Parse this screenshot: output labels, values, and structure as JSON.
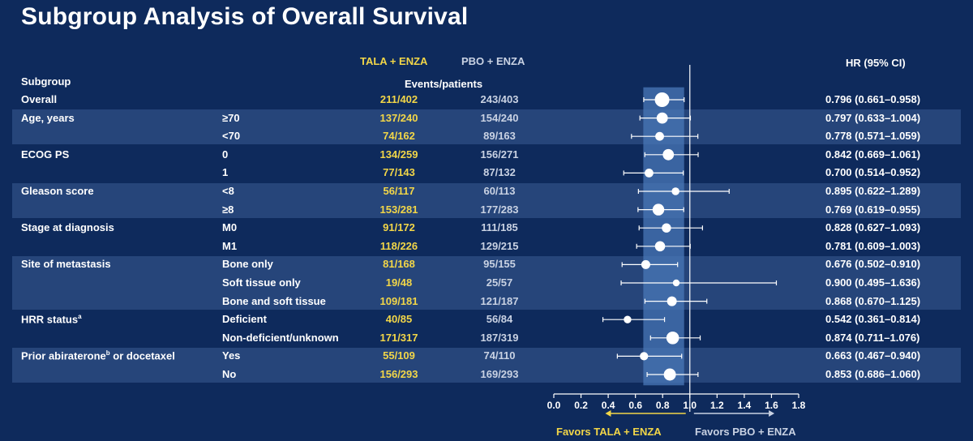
{
  "title": "Subgroup Analysis of Overall Survival",
  "headers": {
    "arm1": "TALA + ENZA",
    "arm2": "PBO + ENZA",
    "subgroup": "Subgroup",
    "events": "Events/patients",
    "hr": "HR (95% CI)"
  },
  "favors": {
    "left": "Favors TALA + ENZA",
    "right": "Favors PBO + ENZA"
  },
  "colors": {
    "background": "#0e2a5c",
    "band": "#2a4a7f",
    "highlight": "#4a78b8",
    "accent_yellow": "#f2d648",
    "marker": "#ffffff"
  },
  "chart_data": {
    "type": "forest",
    "xlim": [
      0.0,
      1.8
    ],
    "xticks": [
      "0.0",
      "0.2",
      "0.4",
      "0.6",
      "0.8",
      "1.0",
      "1.2",
      "1.4",
      "1.6",
      "1.8"
    ],
    "reference_line": 1.0,
    "overall_band": [
      0.658,
      0.958
    ],
    "rows": [
      {
        "group": "Overall",
        "level": "",
        "arm1": "211/402",
        "arm2": "243/403",
        "hr": 0.796,
        "lo": 0.661,
        "hi": 0.958,
        "ci": "0.796 (0.661–0.958)",
        "band": false,
        "weight": 1.0
      },
      {
        "group": "Age, years",
        "level": "≥70",
        "arm1": "137/240",
        "arm2": "154/240",
        "hr": 0.797,
        "lo": 0.633,
        "hi": 1.004,
        "ci": "0.797 (0.633–1.004)",
        "band": true,
        "weight": 0.65
      },
      {
        "group": "",
        "level": "<70",
        "arm1": "74/162",
        "arm2": "89/163",
        "hr": 0.778,
        "lo": 0.571,
        "hi": 1.059,
        "ci": "0.778 (0.571–1.059)",
        "band": true,
        "weight": 0.4
      },
      {
        "group": "ECOG PS",
        "level": "0",
        "arm1": "134/259",
        "arm2": "156/271",
        "hr": 0.842,
        "lo": 0.669,
        "hi": 1.061,
        "ci": "0.842 (0.669–1.061)",
        "band": false,
        "weight": 0.65
      },
      {
        "group": "",
        "level": "1",
        "arm1": "77/143",
        "arm2": "87/132",
        "hr": 0.7,
        "lo": 0.514,
        "hi": 0.952,
        "ci": "0.700 (0.514–0.952)",
        "band": false,
        "weight": 0.4
      },
      {
        "group": "Gleason score",
        "level": "<8",
        "arm1": "56/117",
        "arm2": "60/113",
        "hr": 0.895,
        "lo": 0.622,
        "hi": 1.289,
        "ci": "0.895 (0.622–1.289)",
        "band": true,
        "weight": 0.3
      },
      {
        "group": "",
        "level": "≥8",
        "arm1": "153/281",
        "arm2": "177/283",
        "hr": 0.769,
        "lo": 0.619,
        "hi": 0.955,
        "ci": "0.769 (0.619–0.955)",
        "band": true,
        "weight": 0.7
      },
      {
        "group": "Stage at diagnosis",
        "level": "M0",
        "arm1": "91/172",
        "arm2": "111/185",
        "hr": 0.828,
        "lo": 0.627,
        "hi": 1.093,
        "ci": "0.828 (0.627–1.093)",
        "band": false,
        "weight": 0.45
      },
      {
        "group": "",
        "level": "M1",
        "arm1": "118/226",
        "arm2": "129/215",
        "hr": 0.781,
        "lo": 0.609,
        "hi": 1.003,
        "ci": "0.781 (0.609–1.003)",
        "band": false,
        "weight": 0.55
      },
      {
        "group": "Site of metastasis",
        "level": "Bone only",
        "arm1": "81/168",
        "arm2": "95/155",
        "hr": 0.676,
        "lo": 0.502,
        "hi": 0.91,
        "ci": "0.676 (0.502–0.910)",
        "band": true,
        "weight": 0.42
      },
      {
        "group": "",
        "level": "Soft tissue only",
        "arm1": "19/48",
        "arm2": "25/57",
        "hr": 0.9,
        "lo": 0.495,
        "hi": 1.636,
        "ci": "0.900 (0.495–1.636)",
        "band": true,
        "weight": 0.2
      },
      {
        "group": "",
        "level": "Bone and soft tissue",
        "arm1": "109/181",
        "arm2": "121/187",
        "hr": 0.868,
        "lo": 0.67,
        "hi": 1.125,
        "ci": "0.868 (0.670–1.125)",
        "band": true,
        "weight": 0.5
      },
      {
        "group": "HRR status",
        "group_sup": "a",
        "level": "Deficient",
        "arm1": "40/85",
        "arm2": "56/84",
        "hr": 0.542,
        "lo": 0.361,
        "hi": 0.814,
        "ci": "0.542 (0.361–0.814)",
        "band": false,
        "weight": 0.28
      },
      {
        "group": "",
        "level": "Non-deficient/unknown",
        "arm1": "171/317",
        "arm2": "187/319",
        "hr": 0.874,
        "lo": 0.711,
        "hi": 1.076,
        "ci": "0.874 (0.711–1.076)",
        "band": false,
        "weight": 0.8
      },
      {
        "group": "Prior abiraterone",
        "group_sup": "b",
        "group_tail": " or docetaxel",
        "level": "Yes",
        "arm1": "55/109",
        "arm2": "74/110",
        "hr": 0.663,
        "lo": 0.467,
        "hi": 0.94,
        "ci": "0.663 (0.467–0.940)",
        "band": true,
        "weight": 0.35
      },
      {
        "group": "",
        "level": "No",
        "arm1": "156/293",
        "arm2": "169/293",
        "hr": 0.853,
        "lo": 0.686,
        "hi": 1.06,
        "ci": "0.853 (0.686–1.060)",
        "band": true,
        "weight": 0.75
      }
    ]
  }
}
